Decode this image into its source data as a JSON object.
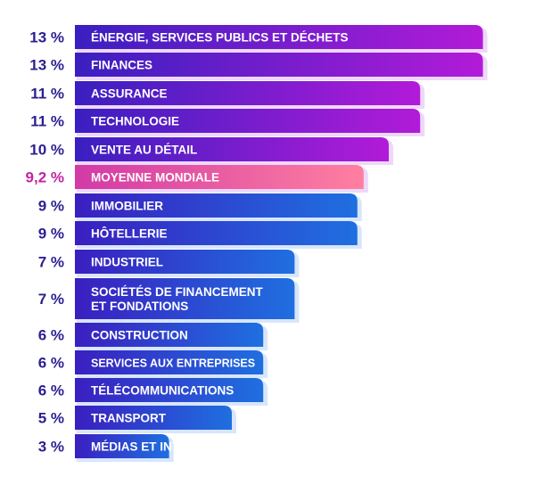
{
  "chart_data": {
    "type": "bar",
    "orientation": "horizontal",
    "grid": false,
    "legend": "none",
    "categories": [
      [
        "ÉNERGIE, SERVICES PUBLICS ET DÉCHETS"
      ],
      [
        "FINANCES"
      ],
      [
        "ASSURANCE"
      ],
      [
        "TECHNOLOGIE"
      ],
      [
        "VENTE AU DÉTAIL"
      ],
      [
        "MOYENNE MONDIALE"
      ],
      [
        "IMMOBILIER"
      ],
      [
        "HÔTELLERIE"
      ],
      [
        "INDUSTRIEL"
      ],
      [
        "SOCIÉTÉS DE FINANCEMENT",
        "ET FONDATIONS"
      ],
      [
        "CONSTRUCTION"
      ],
      [
        "SERVICES AUX ENTREPRISES"
      ],
      [
        "TÉLÉCOMMUNICATIONS"
      ],
      [
        "TRANSPORT"
      ],
      [
        "MÉDIAS ET INTERNET"
      ]
    ],
    "values": [
      13,
      13,
      11,
      11,
      10,
      9.2,
      9,
      9,
      7,
      7,
      6,
      6,
      6,
      5,
      3
    ],
    "value_labels": [
      "13 %",
      "13 %",
      "11 %",
      "11 %",
      "10 %",
      "9,2 %",
      "9 %",
      "9 %",
      "7 %",
      "7 %",
      "6 %",
      "6 %",
      "6 %",
      "5 %",
      "3 %"
    ],
    "highlight_index": 5,
    "colors": {
      "value_text": "#2a1f8f",
      "highlight_text": "#c0259f",
      "bar_start": "#3a1fc0",
      "bar_end_purple": "#b21bd8",
      "bar_end_blue": "#1f6fe0",
      "highlight_start": "#d23aa6",
      "highlight_end": "#ff7fa0",
      "shadow_purple": "#e7c8f7",
      "shadow_blue": "#c8dcfa"
    }
  }
}
